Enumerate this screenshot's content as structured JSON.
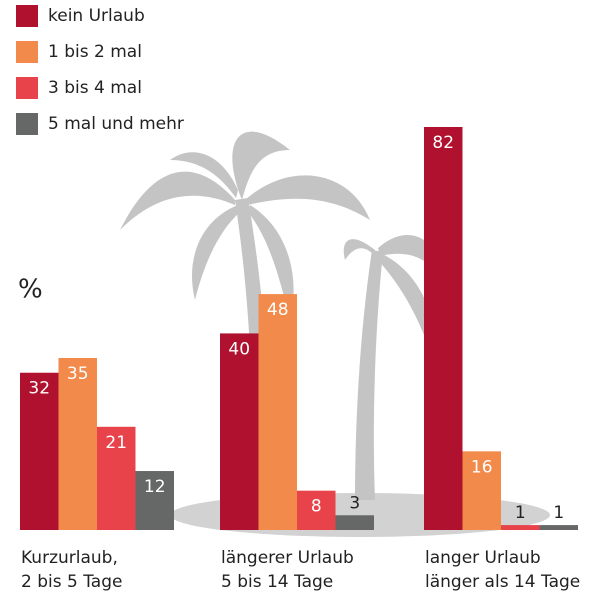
{
  "chart_data": {
    "type": "bar",
    "y_label": "%",
    "categories": [
      [
        "Kurzurlaub,",
        "2 bis 5 Tage"
      ],
      [
        "längerer Urlaub",
        "5 bis 14 Tage"
      ],
      [
        "langer Urlaub",
        "länger als 14 Tage"
      ]
    ],
    "series": [
      {
        "name": "kein Urlaub",
        "color": "#b0112e",
        "values": [
          32,
          40,
          82
        ]
      },
      {
        "name": "1 bis 2 mal",
        "color": "#f28a4b",
        "values": [
          35,
          48,
          16
        ]
      },
      {
        "name": "3 bis 4 mal",
        "color": "#e8424a",
        "values": [
          21,
          8,
          1
        ]
      },
      {
        "name": "5 mal und mehr",
        "color": "#666868",
        "values": [
          12,
          3,
          1
        ]
      }
    ],
    "ylim": [
      0,
      82
    ],
    "legend": "top-left"
  }
}
